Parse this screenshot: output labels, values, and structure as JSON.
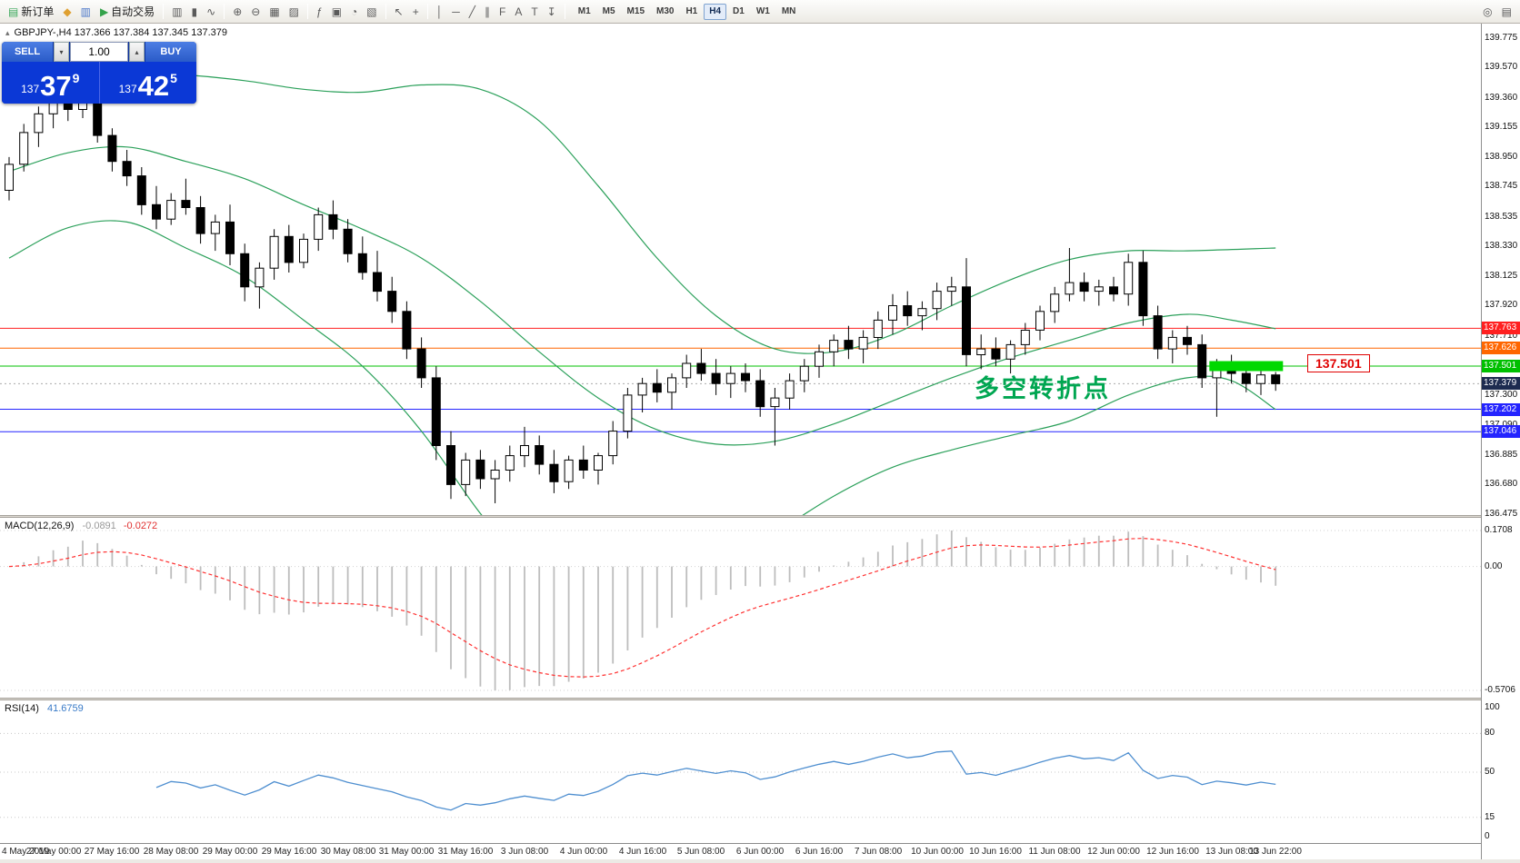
{
  "colors": {
    "band_green": "#2ba05a",
    "macd_main": "#bdbdbd",
    "macd_signal": "#ff3030",
    "rsi_blue": "#4f8fd0",
    "highlight_green": "#00d800",
    "annotation_green": "#00a651",
    "current_badge_bg": "#1d2b50",
    "panel_blue": "#0b38d6"
  },
  "icons": {
    "spin_down": "▾",
    "spin_up": "▴",
    "symbol_marker": "▴"
  },
  "toolbar": {
    "groups": [
      {
        "items": [
          {
            "name": "new-order-button",
            "glyph": "▤",
            "color": "#3aa85a",
            "label": "新订单"
          },
          {
            "name": "indicator-add-button",
            "glyph": "◆",
            "color": "#dfa030"
          },
          {
            "name": "profiles-button",
            "glyph": "▥",
            "color": "#4a76c8"
          },
          {
            "name": "autotrading-button",
            "glyph": "▶",
            "color": "#33a24a",
            "label": "自动交易"
          }
        ]
      },
      {
        "items": [
          {
            "name": "bar-chart-button",
            "glyph": "▥"
          },
          {
            "name": "candlestick-chart-button",
            "glyph": "▮"
          },
          {
            "name": "line-chart-button",
            "glyph": "∿"
          }
        ]
      },
      {
        "items": [
          {
            "name": "zoom-in-button",
            "glyph": "⊕"
          },
          {
            "name": "zoom-out-button",
            "glyph": "⊖"
          },
          {
            "name": "grid-button",
            "glyph": "▦"
          },
          {
            "name": "tile-windows-button",
            "glyph": "▨"
          }
        ]
      },
      {
        "items": [
          {
            "name": "indicators-list-button",
            "glyph": "ƒ"
          },
          {
            "name": "objects-list-button",
            "glyph": "▣"
          },
          {
            "name": "periods-button",
            "glyph": "◔"
          },
          {
            "name": "templates-button",
            "glyph": "▧"
          }
        ]
      },
      {
        "items": [
          {
            "name": "cursor-button",
            "glyph": "↖"
          },
          {
            "name": "crosshair-button",
            "glyph": "+"
          }
        ]
      },
      {
        "items": [
          {
            "name": "vertical-line-button",
            "glyph": "│"
          },
          {
            "name": "horizontal-line-button",
            "glyph": "─"
          },
          {
            "name": "trendline-button",
            "glyph": "╱"
          },
          {
            "name": "channel-button",
            "glyph": "∥"
          },
          {
            "name": "fibonacci-button",
            "glyph": "F"
          },
          {
            "name": "text-button",
            "glyph": "A"
          },
          {
            "name": "label-button",
            "glyph": "T"
          },
          {
            "name": "arrows-button",
            "glyph": "↧"
          }
        ]
      }
    ],
    "timeframes": [
      "M1",
      "M5",
      "M15",
      "M30",
      "H1",
      "H4",
      "D1",
      "W1",
      "MN"
    ],
    "active_timeframe": "H4",
    "right_items": [
      {
        "name": "zoom-tool-button",
        "glyph": "◎"
      },
      {
        "name": "print-button",
        "glyph": "▤"
      }
    ]
  },
  "quote_panel": {
    "symbol_line": "GBPJPY-,H4  137.366 137.384 137.345 137.379",
    "sell_label": "SELL",
    "buy_label": "BUY",
    "volume": "1.00",
    "sell_price": {
      "prefix": "137",
      "big": "37",
      "sup": "9"
    },
    "buy_price": {
      "prefix": "137",
      "big": "42",
      "sup": "5"
    }
  },
  "annotation": {
    "text": "多空转折点"
  },
  "chart_data": {
    "type": "candlestick",
    "symbol": "GBPJPY-",
    "timeframe": "H4",
    "ohlc": [
      [
        138.72,
        138.95,
        138.65,
        138.9
      ],
      [
        138.9,
        139.18,
        138.85,
        139.12
      ],
      [
        139.12,
        139.3,
        139.02,
        139.25
      ],
      [
        139.25,
        139.38,
        139.15,
        139.33
      ],
      [
        139.33,
        139.45,
        139.2,
        139.28
      ],
      [
        139.28,
        139.5,
        139.22,
        139.46
      ],
      [
        139.46,
        139.48,
        139.05,
        139.1
      ],
      [
        139.1,
        139.15,
        138.85,
        138.92
      ],
      [
        138.92,
        139.0,
        138.75,
        138.82
      ],
      [
        138.82,
        138.88,
        138.55,
        138.62
      ],
      [
        138.62,
        138.75,
        138.45,
        138.52
      ],
      [
        138.52,
        138.7,
        138.48,
        138.65
      ],
      [
        138.65,
        138.8,
        138.55,
        138.6
      ],
      [
        138.6,
        138.68,
        138.35,
        138.42
      ],
      [
        138.42,
        138.55,
        138.3,
        138.5
      ],
      [
        138.5,
        138.62,
        138.2,
        138.28
      ],
      [
        138.28,
        138.35,
        137.95,
        138.05
      ],
      [
        138.05,
        138.22,
        137.9,
        138.18
      ],
      [
        138.18,
        138.45,
        138.1,
        138.4
      ],
      [
        138.4,
        138.48,
        138.15,
        138.22
      ],
      [
        138.22,
        138.42,
        138.18,
        138.38
      ],
      [
        138.38,
        138.6,
        138.3,
        138.55
      ],
      [
        138.55,
        138.65,
        138.38,
        138.45
      ],
      [
        138.45,
        138.52,
        138.22,
        138.28
      ],
      [
        138.28,
        138.4,
        138.1,
        138.15
      ],
      [
        138.15,
        138.3,
        137.95,
        138.02
      ],
      [
        138.02,
        138.12,
        137.8,
        137.88
      ],
      [
        137.88,
        137.95,
        137.55,
        137.62
      ],
      [
        137.62,
        137.7,
        137.35,
        137.42
      ],
      [
        137.42,
        137.5,
        136.85,
        136.95
      ],
      [
        136.95,
        137.05,
        136.58,
        136.68
      ],
      [
        136.68,
        136.9,
        136.6,
        136.85
      ],
      [
        136.85,
        136.92,
        136.65,
        136.72
      ],
      [
        136.72,
        136.85,
        136.55,
        136.78
      ],
      [
        136.78,
        136.95,
        136.7,
        136.88
      ],
      [
        136.88,
        137.08,
        136.8,
        136.95
      ],
      [
        136.95,
        137.02,
        136.75,
        136.82
      ],
      [
        136.82,
        136.92,
        136.62,
        136.7
      ],
      [
        136.7,
        136.88,
        136.65,
        136.85
      ],
      [
        136.85,
        136.95,
        136.72,
        136.78
      ],
      [
        136.78,
        136.9,
        136.68,
        136.88
      ],
      [
        136.88,
        137.12,
        136.82,
        137.05
      ],
      [
        137.05,
        137.35,
        137.0,
        137.3
      ],
      [
        137.3,
        137.42,
        137.18,
        137.38
      ],
      [
        137.38,
        137.48,
        137.25,
        137.32
      ],
      [
        137.32,
        137.45,
        137.2,
        137.42
      ],
      [
        137.42,
        137.58,
        137.35,
        137.52
      ],
      [
        137.52,
        137.62,
        137.4,
        137.45
      ],
      [
        137.45,
        137.55,
        137.3,
        137.38
      ],
      [
        137.38,
        137.5,
        137.28,
        137.45
      ],
      [
        137.45,
        137.52,
        137.32,
        137.4
      ],
      [
        137.4,
        137.48,
        137.15,
        137.22
      ],
      [
        137.22,
        137.35,
        136.95,
        137.28
      ],
      [
        137.28,
        137.45,
        137.2,
        137.4
      ],
      [
        137.4,
        137.55,
        137.32,
        137.5
      ],
      [
        137.5,
        137.65,
        137.42,
        137.6
      ],
      [
        137.6,
        137.72,
        137.5,
        137.68
      ],
      [
        137.68,
        137.78,
        137.55,
        137.62
      ],
      [
        137.62,
        137.75,
        137.52,
        137.7
      ],
      [
        137.7,
        137.88,
        137.62,
        137.82
      ],
      [
        137.82,
        138.0,
        137.72,
        137.92
      ],
      [
        137.92,
        138.02,
        137.78,
        137.85
      ],
      [
        137.85,
        137.95,
        137.75,
        137.9
      ],
      [
        137.9,
        138.08,
        137.82,
        138.02
      ],
      [
        138.02,
        138.12,
        137.92,
        138.05
      ],
      [
        138.05,
        138.25,
        137.5,
        137.58
      ],
      [
        137.58,
        137.72,
        137.48,
        137.62
      ],
      [
        137.62,
        137.7,
        137.5,
        137.55
      ],
      [
        137.55,
        137.68,
        137.45,
        137.65
      ],
      [
        137.65,
        137.8,
        137.58,
        137.75
      ],
      [
        137.75,
        137.92,
        137.68,
        137.88
      ],
      [
        137.88,
        138.05,
        137.8,
        138.0
      ],
      [
        138.0,
        138.32,
        137.95,
        138.08
      ],
      [
        138.08,
        138.15,
        137.95,
        138.02
      ],
      [
        138.02,
        138.1,
        137.92,
        138.05
      ],
      [
        138.05,
        138.12,
        137.95,
        138.0
      ],
      [
        138.0,
        138.28,
        137.92,
        138.22
      ],
      [
        138.22,
        138.3,
        137.78,
        137.85
      ],
      [
        137.85,
        137.92,
        137.55,
        137.62
      ],
      [
        137.62,
        137.75,
        137.52,
        137.7
      ],
      [
        137.7,
        137.78,
        137.58,
        137.65
      ],
      [
        137.65,
        137.72,
        137.35,
        137.42
      ],
      [
        137.42,
        137.55,
        137.15,
        137.5
      ],
      [
        137.5,
        137.58,
        137.38,
        137.45
      ],
      [
        137.45,
        137.52,
        137.32,
        137.38
      ],
      [
        137.38,
        137.48,
        137.3,
        137.44
      ],
      [
        137.44,
        137.46,
        137.33,
        137.379
      ]
    ],
    "bollinger_bands": {
      "upper": [
        [
          0,
          139.45
        ],
        [
          4,
          139.5
        ],
        [
          8,
          139.54
        ],
        [
          12,
          139.52
        ],
        [
          16,
          139.48
        ],
        [
          20,
          139.42
        ],
        [
          24,
          139.4
        ],
        [
          28,
          139.45
        ],
        [
          32,
          139.42
        ],
        [
          36,
          139.2
        ],
        [
          40,
          138.75
        ],
        [
          44,
          138.25
        ],
        [
          48,
          137.85
        ],
        [
          52,
          137.62
        ],
        [
          56,
          137.6
        ],
        [
          60,
          137.72
        ],
        [
          64,
          137.92
        ],
        [
          68,
          138.1
        ],
        [
          72,
          138.24
        ],
        [
          76,
          138.3
        ],
        [
          80,
          138.3
        ],
        [
          86,
          138.32
        ]
      ],
      "middle": [
        [
          0,
          138.85
        ],
        [
          4,
          138.98
        ],
        [
          8,
          139.02
        ],
        [
          12,
          138.92
        ],
        [
          16,
          138.8
        ],
        [
          20,
          138.62
        ],
        [
          24,
          138.45
        ],
        [
          28,
          138.25
        ],
        [
          32,
          137.95
        ],
        [
          36,
          137.6
        ],
        [
          40,
          137.28
        ],
        [
          44,
          137.06
        ],
        [
          48,
          136.96
        ],
        [
          52,
          136.98
        ],
        [
          56,
          137.1
        ],
        [
          60,
          137.26
        ],
        [
          64,
          137.42
        ],
        [
          68,
          137.56
        ],
        [
          72,
          137.68
        ],
        [
          76,
          137.8
        ],
        [
          80,
          137.86
        ],
        [
          83,
          137.82
        ],
        [
          86,
          137.76
        ]
      ],
      "lower": [
        [
          0,
          138.25
        ],
        [
          4,
          138.46
        ],
        [
          8,
          138.5
        ],
        [
          12,
          138.32
        ],
        [
          16,
          138.12
        ],
        [
          20,
          137.82
        ],
        [
          24,
          137.5
        ],
        [
          28,
          137.05
        ],
        [
          32,
          136.48
        ],
        [
          36,
          136.0
        ],
        [
          40,
          135.81
        ],
        [
          44,
          135.87
        ],
        [
          48,
          136.07
        ],
        [
          52,
          136.34
        ],
        [
          56,
          136.6
        ],
        [
          60,
          136.8
        ],
        [
          64,
          136.92
        ],
        [
          68,
          137.02
        ],
        [
          72,
          137.12
        ],
        [
          76,
          137.3
        ],
        [
          80,
          137.42
        ],
        [
          83,
          137.4
        ],
        [
          86,
          137.2
        ]
      ]
    },
    "hlines": [
      {
        "price": 137.763,
        "label": "137.763",
        "color": "#ff2020"
      },
      {
        "price": 137.626,
        "label": "137.626",
        "color": "#ff6600"
      },
      {
        "price": 137.501,
        "label": "137.501",
        "color": "#00c000"
      },
      {
        "price": 137.202,
        "label": "137.202",
        "color": "#2424ff"
      },
      {
        "price": 137.046,
        "label": "137.046",
        "color": "#2424ff"
      }
    ],
    "current": {
      "price": 137.379,
      "label": "137.379"
    },
    "highlight": {
      "price": 137.501,
      "from_i": 81.5,
      "to_i": 86.5,
      "label": "137.501"
    },
    "price_axis_labels": [
      "139.775",
      "139.570",
      "139.360",
      "139.155",
      "138.950",
      "138.745",
      "138.535",
      "138.330",
      "138.125",
      "137.920",
      "137.710",
      "137.505",
      "137.300",
      "137.090",
      "136.885",
      "136.680",
      "136.475"
    ],
    "time_axis_labels": [
      {
        "text": "4 May 2019",
        "i": 0
      },
      {
        "text": "27 May 00:00",
        "i": 3
      },
      {
        "text": "27 May 16:00",
        "i": 7
      },
      {
        "text": "28 May 08:00",
        "i": 11
      },
      {
        "text": "29 May 00:00",
        "i": 15
      },
      {
        "text": "29 May 16:00",
        "i": 19
      },
      {
        "text": "30 May 08:00",
        "i": 23
      },
      {
        "text": "31 May 00:00",
        "i": 27
      },
      {
        "text": "31 May 16:00",
        "i": 31
      },
      {
        "text": "3 Jun 08:00",
        "i": 35
      },
      {
        "text": "4 Jun 00:00",
        "i": 39
      },
      {
        "text": "4 Jun 16:00",
        "i": 43
      },
      {
        "text": "5 Jun 08:00",
        "i": 47
      },
      {
        "text": "6 Jun 00:00",
        "i": 51
      },
      {
        "text": "6 Jun 16:00",
        "i": 55
      },
      {
        "text": "7 Jun 08:00",
        "i": 59
      },
      {
        "text": "10 Jun 00:00",
        "i": 63
      },
      {
        "text": "10 Jun 16:00",
        "i": 67
      },
      {
        "text": "11 Jun 08:00",
        "i": 71
      },
      {
        "text": "12 Jun 00:00",
        "i": 75
      },
      {
        "text": "12 Jun 16:00",
        "i": 79
      },
      {
        "text": "13 Jun 08:00",
        "i": 83
      },
      {
        "text": "13 Jun 22:00",
        "i": 86
      }
    ],
    "macd": {
      "label": "MACD(12,26,9)",
      "value_main": "-0.0891",
      "value_signal": "-0.0272",
      "axis_labels": [
        "0.1708",
        "0.00",
        "-0.5706"
      ]
    },
    "rsi": {
      "label": "RSI(14)",
      "value": "41.6759",
      "axis_labels": [
        "100",
        "80",
        "50",
        "15",
        "0"
      ],
      "levels": [
        80,
        50,
        15
      ]
    }
  }
}
